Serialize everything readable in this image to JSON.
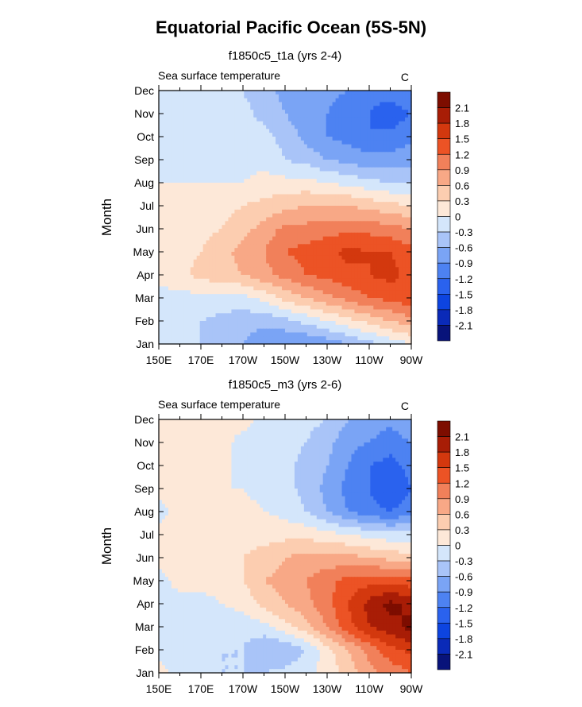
{
  "title": "Equatorial Pacific Ocean (5S-5N)",
  "colors": {
    "levels": [
      "-2.1",
      "-1.8",
      "-1.5",
      "-1.2",
      "-0.9",
      "-0.6",
      "-0.3",
      "0",
      "0.3",
      "0.6",
      "0.9",
      "1.2",
      "1.5",
      "1.8",
      "2.1"
    ],
    "palette": [
      "#08137a",
      "#0a2ab8",
      "#0d44e0",
      "#2a62ee",
      "#4d82f2",
      "#7aa4f5",
      "#a9c4f8",
      "#d4e6fb",
      "#fde8d8",
      "#fccdb0",
      "#f8a886",
      "#f1805a",
      "#ec5325",
      "#d3380e",
      "#a81d06",
      "#7d0d00"
    ]
  },
  "chart_data": [
    {
      "type": "heatmap",
      "subtitle": "f1850c5_t1a (yrs 2-4)",
      "left_label": "Sea surface temperature",
      "right_label": "C",
      "ylabel": "Month",
      "x_ticks": [
        "150E",
        "170E",
        "170W",
        "150W",
        "130W",
        "110W",
        "90W"
      ],
      "x_tick_lon": [
        150,
        170,
        190,
        210,
        230,
        250,
        270
      ],
      "xlim": [
        150,
        270
      ],
      "y_ticks": [
        "Jan",
        "Feb",
        "Mar",
        "Apr",
        "May",
        "Jun",
        "Jul",
        "Aug",
        "Sep",
        "Oct",
        "Nov",
        "Dec"
      ],
      "ylim": [
        1,
        12
      ],
      "colorbar_labels": [
        "2.1",
        "1.8",
        "1.5",
        "1.2",
        "0.9",
        "0.6",
        "0.3",
        "0",
        "-0.3",
        "-0.6",
        "-0.9",
        "-1.2",
        "-1.5",
        "-1.8",
        "-2.1"
      ],
      "lon": [
        150,
        160,
        170,
        180,
        190,
        200,
        210,
        220,
        230,
        240,
        250,
        260,
        270
      ],
      "months": [
        1,
        2,
        3,
        4,
        5,
        6,
        7,
        8,
        9,
        10,
        11,
        12
      ],
      "values": [
        [
          -0.2,
          -0.3,
          -0.3,
          -0.4,
          -0.6,
          -0.8,
          -0.9,
          -0.9,
          -0.8,
          -0.6,
          -0.4,
          -0.2,
          0.0
        ],
        [
          -0.1,
          -0.2,
          -0.3,
          -0.4,
          -0.5,
          -0.5,
          -0.4,
          -0.2,
          0.0,
          0.2,
          0.4,
          0.6,
          0.8
        ],
        [
          -0.1,
          -0.1,
          -0.1,
          -0.1,
          -0.1,
          0.1,
          0.4,
          0.6,
          0.8,
          1.0,
          1.2,
          1.3,
          1.4
        ],
        [
          0.1,
          0.2,
          0.4,
          0.5,
          0.6,
          0.8,
          1.0,
          1.2,
          1.3,
          1.4,
          1.5,
          1.6,
          1.4
        ],
        [
          0.2,
          0.2,
          0.3,
          0.5,
          0.7,
          0.9,
          1.2,
          1.3,
          1.4,
          1.6,
          1.5,
          1.5,
          1.3
        ],
        [
          0.2,
          0.2,
          0.2,
          0.3,
          0.5,
          0.7,
          1.0,
          1.0,
          1.1,
          1.1,
          1.1,
          1.0,
          0.9
        ],
        [
          0.1,
          0.1,
          0.1,
          0.2,
          0.3,
          0.4,
          0.5,
          0.6,
          0.6,
          0.6,
          0.5,
          0.4,
          0.3
        ],
        [
          0.0,
          0.0,
          0.0,
          0.0,
          0.0,
          0.1,
          0.1,
          0.1,
          0.0,
          -0.1,
          -0.2,
          -0.3,
          -0.3
        ],
        [
          -0.1,
          -0.1,
          -0.1,
          -0.1,
          -0.1,
          -0.1,
          -0.3,
          -0.4,
          -0.6,
          -0.7,
          -0.8,
          -0.8,
          -0.7
        ],
        [
          -0.1,
          -0.1,
          -0.1,
          -0.1,
          -0.1,
          -0.2,
          -0.4,
          -0.7,
          -0.9,
          -1.0,
          -1.2,
          -1.1,
          -1.0
        ],
        [
          -0.1,
          -0.1,
          -0.1,
          -0.1,
          -0.2,
          -0.4,
          -0.6,
          -0.8,
          -0.9,
          -1.1,
          -1.2,
          -1.4,
          -1.2
        ],
        [
          0.0,
          -0.1,
          -0.1,
          -0.1,
          -0.3,
          -0.5,
          -0.7,
          -0.8,
          -0.8,
          -0.9,
          -1.1,
          -1.0,
          -0.9
        ]
      ]
    },
    {
      "type": "heatmap",
      "subtitle": "f1850c5_m3 (yrs 2-6)",
      "left_label": "Sea surface temperature",
      "right_label": "C",
      "ylabel": "Month",
      "x_ticks": [
        "150E",
        "170E",
        "170W",
        "150W",
        "130W",
        "110W",
        "90W"
      ],
      "x_tick_lon": [
        150,
        170,
        190,
        210,
        230,
        250,
        270
      ],
      "xlim": [
        150,
        270
      ],
      "y_ticks": [
        "Jan",
        "Feb",
        "Mar",
        "Apr",
        "May",
        "Jun",
        "Jul",
        "Aug",
        "Sep",
        "Oct",
        "Nov",
        "Dec"
      ],
      "ylim": [
        1,
        12
      ],
      "colorbar_labels": [
        "2.1",
        "1.8",
        "1.5",
        "1.2",
        "0.9",
        "0.6",
        "0.3",
        "0",
        "-0.3",
        "-0.6",
        "-0.9",
        "-1.2",
        "-1.5",
        "-1.8",
        "-2.1"
      ],
      "lon": [
        150,
        160,
        170,
        180,
        190,
        200,
        210,
        220,
        230,
        240,
        250,
        260,
        270
      ],
      "months": [
        1,
        2,
        3,
        4,
        5,
        6,
        7,
        8,
        9,
        10,
        11,
        12
      ],
      "values": [
        [
          0.1,
          -0.1,
          -0.2,
          -0.3,
          -0.3,
          -0.3,
          -0.2,
          -0.1,
          0.1,
          0.4,
          0.8,
          1.0,
          1.2
        ],
        [
          -0.1,
          -0.2,
          -0.2,
          -0.3,
          -0.3,
          -0.6,
          -0.6,
          -0.3,
          0.2,
          0.6,
          1.0,
          1.4,
          1.6
        ],
        [
          -0.1,
          -0.1,
          -0.2,
          -0.2,
          -0.2,
          -0.1,
          0.2,
          0.5,
          0.9,
          1.4,
          1.8,
          2.0,
          2.2
        ],
        [
          -0.1,
          -0.1,
          -0.1,
          0.0,
          0.1,
          0.4,
          0.6,
          0.8,
          1.1,
          1.5,
          1.9,
          2.2,
          2.0
        ],
        [
          -0.1,
          0.1,
          0.1,
          0.1,
          0.3,
          0.6,
          0.7,
          0.9,
          1.1,
          1.3,
          1.4,
          1.4,
          1.3
        ],
        [
          0.1,
          0.1,
          0.1,
          0.2,
          0.3,
          0.4,
          0.6,
          0.7,
          0.7,
          0.7,
          0.6,
          0.5,
          0.4
        ],
        [
          0.1,
          0.1,
          0.2,
          0.1,
          0.2,
          0.2,
          0.2,
          0.2,
          0.1,
          0.0,
          -0.1,
          -0.2,
          -0.2
        ],
        [
          -0.1,
          0.1,
          0.1,
          0.1,
          0.1,
          0.0,
          -0.1,
          -0.3,
          -0.6,
          -0.9,
          -1.1,
          -1.2,
          -1.0
        ],
        [
          0.1,
          0.1,
          0.1,
          0.0,
          0.0,
          -0.1,
          -0.2,
          -0.4,
          -0.7,
          -1.0,
          -1.2,
          -1.5,
          -1.2
        ],
        [
          0.1,
          0.1,
          0.1,
          0.1,
          -0.1,
          -0.1,
          -0.2,
          -0.4,
          -0.6,
          -0.9,
          -1.2,
          -1.3,
          -1.1
        ],
        [
          0.1,
          0.1,
          0.1,
          0.1,
          -0.1,
          -0.1,
          -0.2,
          -0.3,
          -0.5,
          -0.8,
          -0.9,
          -1.1,
          -0.9
        ],
        [
          0.1,
          0.1,
          0.1,
          0.1,
          0.1,
          -0.1,
          -0.1,
          -0.2,
          -0.3,
          -0.6,
          -0.7,
          -0.8,
          -0.6
        ]
      ]
    }
  ]
}
